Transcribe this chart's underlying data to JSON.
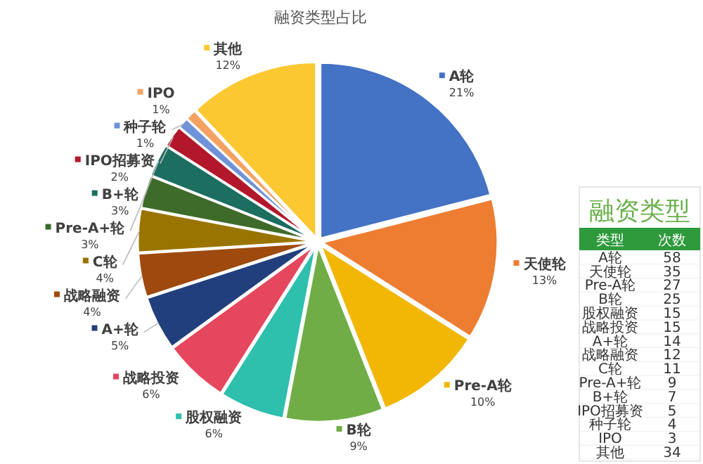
{
  "chart_data": [
    {
      "type": "pie",
      "title": "融资类型占比",
      "categories": [
        "A轮",
        "天使轮",
        "Pre-A轮",
        "B轮",
        "股权融资",
        "战略投资",
        "A+轮",
        "战略融资",
        "C轮",
        "Pre-A+轮",
        "B+轮",
        "IPO招募资",
        "种子轮",
        "IPO",
        "其他"
      ],
      "values": [
        21,
        13,
        10,
        9,
        6,
        6,
        5,
        4,
        4,
        3,
        3,
        2,
        1,
        1,
        12
      ],
      "colors": [
        "#4472c4",
        "#ed7d31",
        "#f2b705",
        "#70ad47",
        "#2fbfad",
        "#e5475e",
        "#213f7c",
        "#9e4a0e",
        "#9a7400",
        "#3e6b2a",
        "#1b6e60",
        "#b3172b",
        "#6f92d8",
        "#f4a262",
        "#fcc832"
      ],
      "value_labels": [
        "21%",
        "13%",
        "10%",
        "9%",
        "6%",
        "6%",
        "5%",
        "4%",
        "4%",
        "3%",
        "3%",
        "2%",
        "1%",
        "1%",
        "12%"
      ],
      "legend": "left"
    },
    {
      "type": "other",
      "title": "融资类型",
      "categories": [
        "A轮",
        "天使轮",
        "Pre-A轮",
        "B轮",
        "股权融资",
        "战略投资",
        "A+轮",
        "战略融资",
        "C轮",
        "Pre-A+轮",
        "B+轮",
        "IPO招募资",
        "种子轮",
        "IPO",
        "其他"
      ],
      "values": [
        58,
        35,
        27,
        25,
        15,
        15,
        14,
        12,
        11,
        9,
        7,
        5,
        4,
        3,
        34
      ],
      "value_labels": [
        "58",
        "35",
        "27",
        "25",
        "15",
        "15",
        "14",
        "12",
        "11",
        "9",
        "7",
        "5",
        "4",
        "3",
        "34"
      ],
      "annotations": [
        "类型",
        "次数"
      ]
    }
  ]
}
